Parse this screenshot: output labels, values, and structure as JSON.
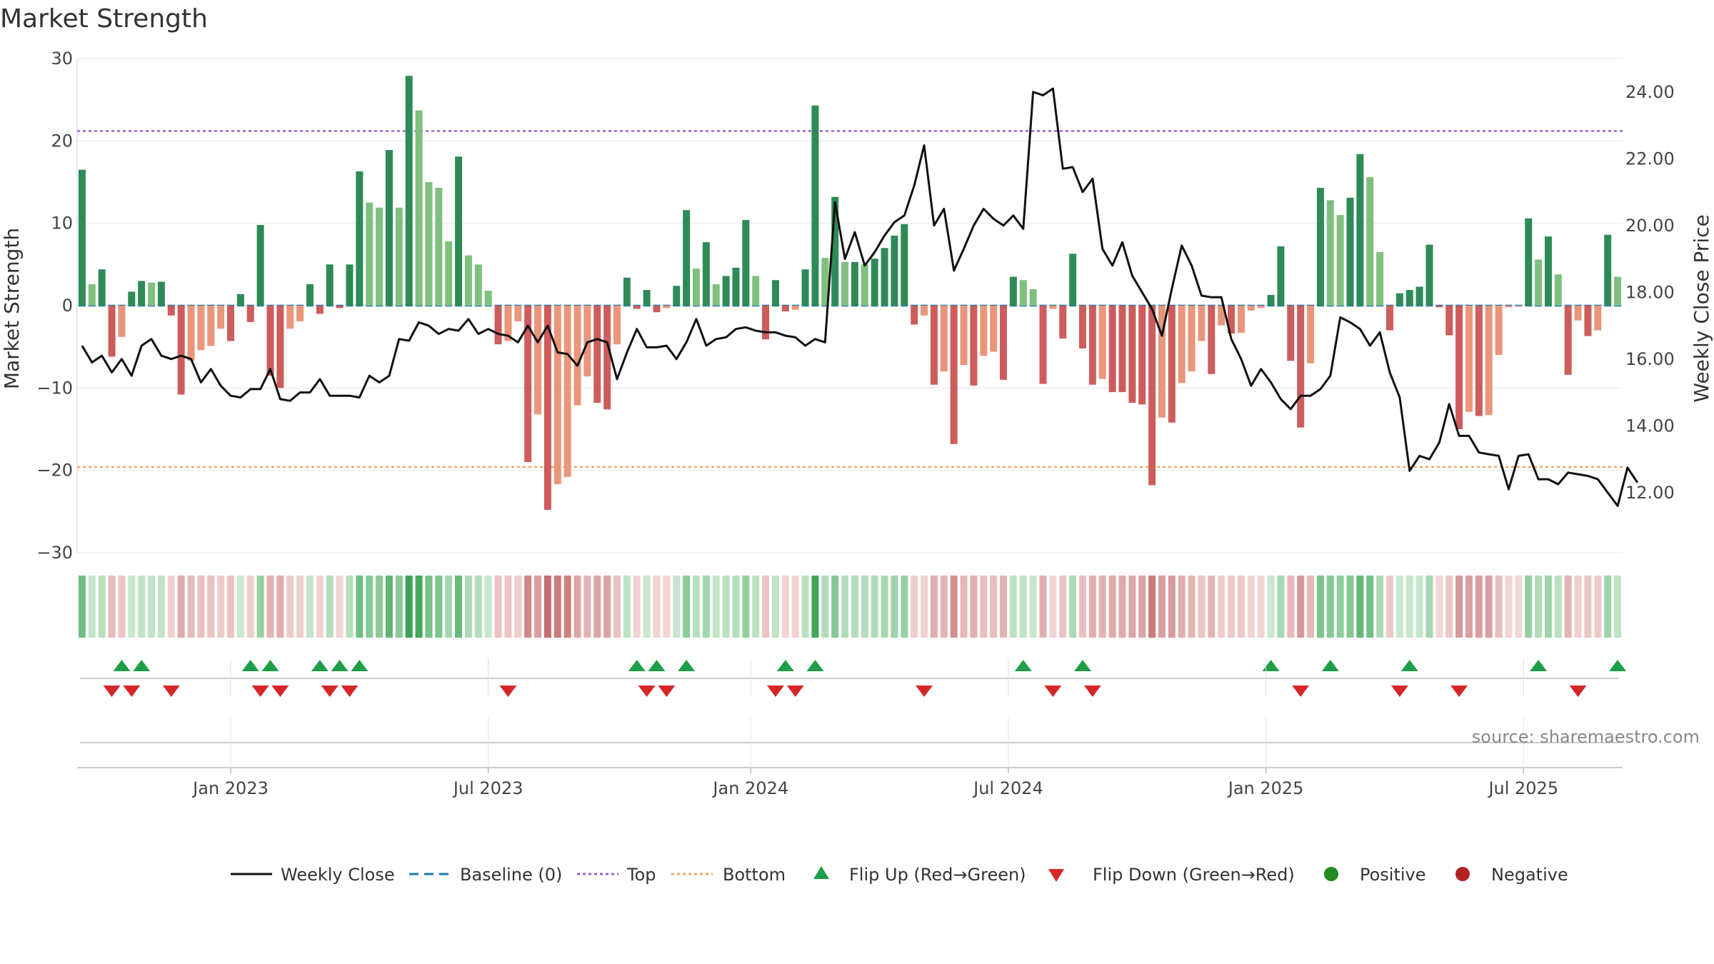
{
  "chart_data": {
    "type": "bar",
    "title": "Market Strength",
    "ylabel": "Market Strength",
    "y2label": "Weekly Close Price",
    "ylim": [
      -30,
      30
    ],
    "y2lim": [
      10.2,
      25.0
    ],
    "yticks": [
      30,
      20,
      10,
      0,
      -10,
      -20,
      -30
    ],
    "y2ticks": [
      "24.00",
      "22.00",
      "20.00",
      "18.00",
      "16.00",
      "14.00",
      "12.00"
    ],
    "y2tick_values": [
      24,
      22,
      20,
      18,
      16,
      14,
      12
    ],
    "top_line": 21.2,
    "bottom_line": -19.6,
    "x_tick_labels": [
      "Jan 2023",
      "Jul 2023",
      "Jan 2024",
      "Jul 2024",
      "Jan 2025",
      "Jul 2025"
    ],
    "x_tick_weeks": [
      15,
      41,
      67.5,
      93.5,
      119.5,
      145.5
    ],
    "values": [
      16.5,
      2.6,
      4.4,
      -6.2,
      -3.8,
      1.7,
      3.0,
      2.8,
      2.9,
      -1.2,
      -10.8,
      -6.7,
      -5.4,
      -4.9,
      -2.8,
      -4.3,
      1.4,
      -2.0,
      9.8,
      -8.5,
      -10.0,
      -2.8,
      -1.9,
      2.6,
      -1.0,
      5.0,
      -0.3,
      5.0,
      16.3,
      12.5,
      11.9,
      18.9,
      11.9,
      27.9,
      23.7,
      15.0,
      14.3,
      7.8,
      18.1,
      6.1,
      5.0,
      1.8,
      -4.7,
      -4.3,
      -1.9,
      -19.0,
      -13.2,
      -24.8,
      -21.7,
      -20.8,
      -12.1,
      -8.6,
      -11.8,
      -12.6,
      -4.7,
      3.4,
      -0.4,
      1.9,
      -0.8,
      -0.3,
      2.4,
      11.6,
      4.5,
      7.7,
      2.6,
      3.6,
      4.6,
      10.4,
      3.6,
      -4.1,
      3.1,
      -0.7,
      -0.5,
      4.4,
      24.3,
      5.8,
      13.2,
      5.3,
      5.3,
      5.0,
      5.7,
      7.0,
      8.5,
      9.9,
      -2.3,
      -1.2,
      -9.6,
      -8.0,
      -16.8,
      -7.2,
      -9.7,
      -6.1,
      -5.6,
      -9.0,
      3.5,
      3.1,
      2.0,
      -9.5,
      -0.4,
      -4.0,
      6.3,
      -5.2,
      -9.6,
      -8.9,
      -10.5,
      -10.5,
      -11.8,
      -12.0,
      -21.8,
      -13.6,
      -14.2,
      -9.4,
      -8.0,
      -4.3,
      -8.3,
      -2.4,
      -3.4,
      -3.3,
      -0.6,
      -0.3,
      1.3,
      7.2,
      -6.7,
      -14.8,
      -7.0,
      14.3,
      12.8,
      11.0,
      13.1,
      18.4,
      15.6,
      6.5,
      -3.0,
      1.5,
      1.9,
      2.3,
      7.4,
      -0.2,
      -3.6,
      -15.0,
      -12.9,
      -13.4,
      -13.3,
      -6.0,
      -0.2,
      -0.1,
      10.6,
      5.6,
      8.4,
      3.8,
      -8.4,
      -1.8,
      -3.7,
      -3.0,
      8.6,
      3.5
    ],
    "series": [
      {
        "name": "Weekly Close",
        "values": [
          16.4,
          15.9,
          16.1,
          15.6,
          16.0,
          15.5,
          16.4,
          16.6,
          16.1,
          16.0,
          16.1,
          16.0,
          15.3,
          15.7,
          15.2,
          14.9,
          14.85,
          15.1,
          15.1,
          15.7,
          14.8,
          14.75,
          15.0,
          15.0,
          15.4,
          14.9,
          14.9,
          14.9,
          14.85,
          15.5,
          15.3,
          15.5,
          16.6,
          16.55,
          17.1,
          17.0,
          16.75,
          16.9,
          16.85,
          17.2,
          16.75,
          16.9,
          16.75,
          16.7,
          16.5,
          17.0,
          16.5,
          17.0,
          16.2,
          16.15,
          15.8,
          16.5,
          16.6,
          16.5,
          15.4,
          16.2,
          16.9,
          16.35,
          16.35,
          16.4,
          16.0,
          16.5,
          17.2,
          16.4,
          16.6,
          16.65,
          16.9,
          16.95,
          16.85,
          16.8,
          16.8,
          16.7,
          16.65,
          16.4,
          16.6,
          16.5,
          20.7,
          19.0,
          19.8,
          18.8,
          19.2,
          19.7,
          20.1,
          20.3,
          21.2,
          22.4,
          20.0,
          20.5,
          18.65,
          19.3,
          20.0,
          20.5,
          20.2,
          20.0,
          20.3,
          19.9,
          24.0,
          23.9,
          24.1,
          21.7,
          21.75,
          21.0,
          21.4,
          19.3,
          18.8,
          19.5,
          18.5,
          18.0,
          17.5,
          16.7,
          18.1,
          19.4,
          18.8,
          17.9,
          17.85,
          17.85,
          16.6,
          16.0,
          15.2,
          15.7,
          15.3,
          14.8,
          14.5,
          14.9,
          14.9,
          15.1,
          15.5,
          17.25,
          17.1,
          16.9,
          16.4,
          16.8,
          15.6,
          14.85,
          12.65,
          13.1,
          13.0,
          13.5,
          14.65,
          13.7,
          13.7,
          13.2,
          13.15,
          13.1,
          12.1,
          13.1,
          13.15,
          12.4,
          12.4,
          12.25,
          12.6,
          12.55,
          12.5,
          12.4,
          12.0,
          11.6,
          12.75,
          12.3
        ]
      },
      {
        "name": "Baseline (0)",
        "values": [
          0
        ]
      },
      {
        "name": "Top",
        "values": [
          21.2
        ]
      },
      {
        "name": "Bottom",
        "values": [
          -19.6
        ]
      }
    ],
    "flip_up_weeks": [
      4,
      6,
      17,
      19,
      24,
      26,
      28,
      56,
      58,
      61,
      71,
      74,
      95,
      101,
      120,
      126,
      134,
      147,
      155
    ],
    "flip_down_weeks": [
      3,
      5,
      9,
      18,
      20,
      25,
      27,
      43,
      57,
      59,
      70,
      72,
      85,
      98,
      102,
      123,
      133,
      139,
      151
    ],
    "legend": [
      "Weekly Close",
      "Baseline (0)",
      "Top",
      "Bottom",
      "Flip Up (Red→Green)",
      "Flip Down (Green→Red)",
      "Positive",
      "Negative"
    ],
    "legend_position": "bottom",
    "source": "source: sharemaestro.com"
  },
  "colors": {
    "pos_dark": "#2e8b57",
    "pos_light": "#7fc07f",
    "neg_dark": "#cd5c5c",
    "neg_light": "#e9967a",
    "top": "#9c5fd0",
    "bottom": "#f4a460",
    "baseline": "#1f77b4",
    "line": "#111111",
    "flip_up": "#1e9e46",
    "flip_down": "#d62728",
    "positive": "#228b22",
    "negative": "#b22222"
  }
}
